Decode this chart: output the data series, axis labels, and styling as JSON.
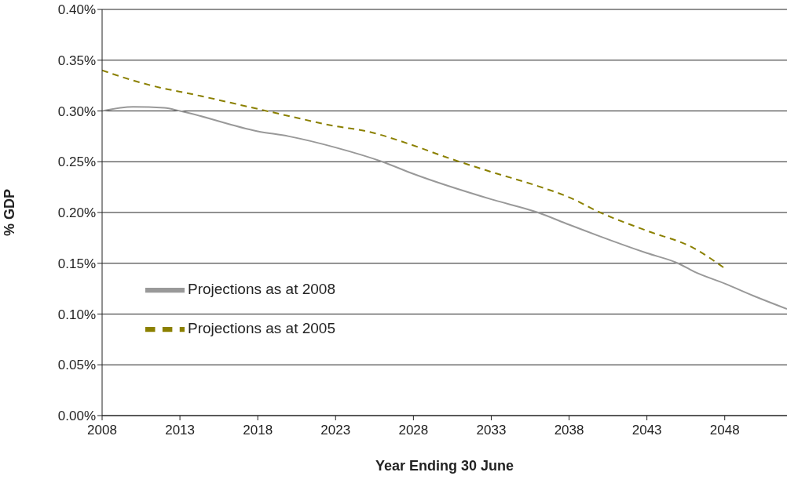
{
  "chart_data": {
    "type": "line",
    "xlabel": "Year Ending 30 June",
    "ylabel": "% GDP",
    "xlim": [
      2008,
      2052
    ],
    "xticks": [
      2008,
      2013,
      2018,
      2023,
      2028,
      2033,
      2038,
      2043,
      2048
    ],
    "ylim": [
      0,
      0.4
    ],
    "yticks": [
      {
        "value": 0,
        "label": "0.00%"
      },
      {
        "value": 0.05,
        "label": "0.05%"
      },
      {
        "value": 0.1,
        "label": "0.10%"
      },
      {
        "value": 0.15,
        "label": "0.15%"
      },
      {
        "value": 0.2,
        "label": "0.20%"
      },
      {
        "value": 0.25,
        "label": "0.25%"
      },
      {
        "value": 0.3,
        "label": "0.30%"
      },
      {
        "value": 0.35,
        "label": "0.35%"
      },
      {
        "value": 0.4,
        "label": "0.40%"
      }
    ],
    "grid": "y",
    "legend": "left",
    "marker": "none",
    "series": [
      {
        "name": "Projections as at 2008",
        "color": "#999999",
        "line_style": "solid",
        "x": [
          2008,
          2010,
          2012,
          2013,
          2018,
          2020,
          2023,
          2026,
          2028,
          2033,
          2036,
          2038,
          2043,
          2045,
          2046,
          2048,
          2050,
          2052
        ],
        "values": [
          0.3,
          0.304,
          0.303,
          0.3,
          0.28,
          0.275,
          0.264,
          0.25,
          0.238,
          0.213,
          0.2,
          0.188,
          0.16,
          0.15,
          0.142,
          0.13,
          0.117,
          0.105
        ]
      },
      {
        "name": "Projections as at 2005",
        "color": "#8b8000",
        "line_style": "dashed",
        "x": [
          2008,
          2010,
          2012,
          2013,
          2018,
          2020,
          2023,
          2025,
          2028,
          2030,
          2033,
          2036,
          2038,
          2040,
          2043,
          2046,
          2048
        ],
        "values": [
          0.34,
          0.33,
          0.322,
          0.319,
          0.302,
          0.295,
          0.285,
          0.28,
          0.266,
          0.255,
          0.24,
          0.226,
          0.215,
          0.2,
          0.182,
          0.165,
          0.145
        ]
      }
    ]
  }
}
